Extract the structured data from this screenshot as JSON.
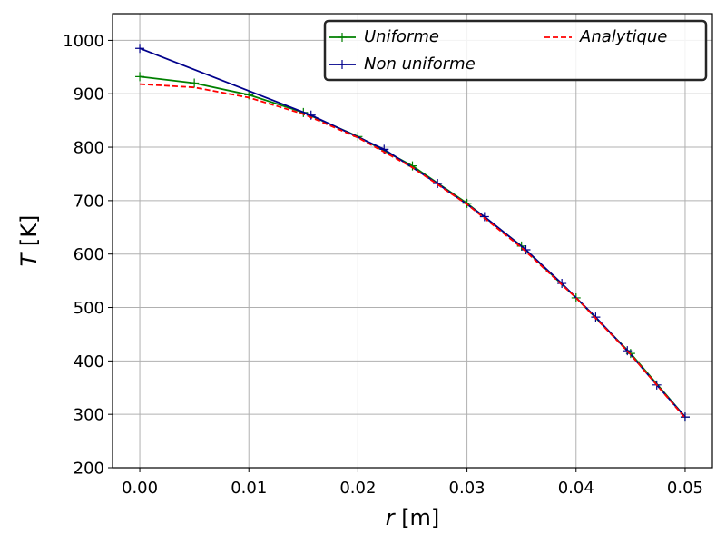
{
  "chart_data": {
    "type": "line",
    "title": "",
    "xlabel_var": "r",
    "xlabel_unit": " [m]",
    "ylabel_var": "T",
    "ylabel_unit": " [K]",
    "xlim": [
      -0.0025,
      0.0525
    ],
    "ylim": [
      200,
      1050
    ],
    "grid": true,
    "legend_position": "top-right",
    "x_ticks": [
      0.0,
      0.01,
      0.02,
      0.03,
      0.04,
      0.05
    ],
    "x_tick_labels": [
      "0.00",
      "0.01",
      "0.02",
      "0.03",
      "0.04",
      "0.05"
    ],
    "y_ticks": [
      200,
      300,
      400,
      500,
      600,
      700,
      800,
      900,
      1000
    ],
    "y_tick_labels": [
      "200",
      "300",
      "400",
      "500",
      "600",
      "700",
      "800",
      "900",
      "1000"
    ],
    "series": [
      {
        "name": "Uniforme",
        "color": "#008000",
        "style": "solid",
        "marker": "+",
        "x": [
          0.0,
          0.005,
          0.01,
          0.015,
          0.02,
          0.025,
          0.03,
          0.035,
          0.04,
          0.045,
          0.05
        ],
        "y": [
          932,
          920,
          898,
          865,
          820,
          765,
          695,
          615,
          518,
          414,
          295
        ]
      },
      {
        "name": "Non uniforme",
        "color": "#00008b",
        "style": "solid",
        "marker": "+",
        "x": [
          0.0,
          0.0157,
          0.0224,
          0.0273,
          0.0316,
          0.0354,
          0.0387,
          0.0418,
          0.0447,
          0.0474,
          0.05
        ],
        "y": [
          985,
          860,
          796,
          732,
          670,
          608,
          545,
          482,
          419,
          355,
          295
        ]
      },
      {
        "name": "Analytique",
        "color": "#ff0000",
        "style": "dashed",
        "marker": "",
        "x": [
          0.0,
          0.005,
          0.01,
          0.015,
          0.02,
          0.025,
          0.03,
          0.035,
          0.04,
          0.045,
          0.05
        ],
        "y": [
          918,
          912,
          893,
          862,
          818,
          762,
          693,
          612,
          518,
          412,
          293
        ]
      }
    ]
  }
}
